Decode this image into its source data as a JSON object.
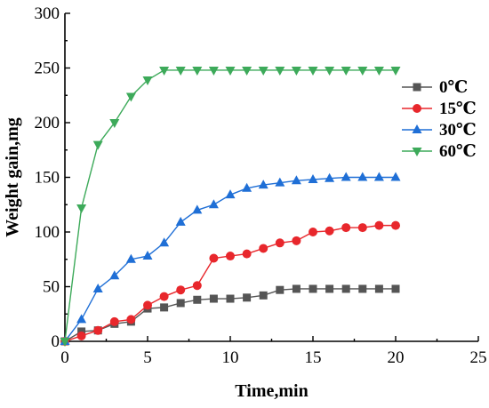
{
  "chart_data": {
    "type": "line",
    "title": "",
    "xlabel": "Time,min",
    "ylabel": "Weight gain,mg",
    "xlim": [
      0,
      25
    ],
    "ylim": [
      0,
      300
    ],
    "xticks": [
      0,
      5,
      10,
      15,
      20,
      25
    ],
    "yticks": [
      0,
      50,
      100,
      150,
      200,
      250,
      300
    ],
    "grid": false,
    "legend_position": "right",
    "series": [
      {
        "name": "0℃",
        "color": "#555555",
        "marker": "square",
        "x": [
          0,
          1,
          2,
          3,
          4,
          5,
          6,
          7,
          8,
          9,
          10,
          11,
          12,
          13,
          14,
          15,
          16,
          17,
          18,
          19,
          20
        ],
        "y": [
          0,
          9,
          10,
          16,
          18,
          30,
          31,
          35,
          38,
          39,
          39,
          40,
          42,
          47,
          48,
          48,
          48,
          48,
          48,
          48,
          48
        ]
      },
      {
        "name": "15℃",
        "color": "#e8272c",
        "marker": "circle",
        "x": [
          0,
          1,
          2,
          3,
          4,
          5,
          6,
          7,
          8,
          9,
          10,
          11,
          12,
          13,
          14,
          15,
          16,
          17,
          18,
          19,
          20
        ],
        "y": [
          0,
          5,
          10,
          18,
          20,
          33,
          41,
          47,
          51,
          76,
          78,
          80,
          85,
          90,
          92,
          100,
          101,
          104,
          104,
          106,
          106
        ]
      },
      {
        "name": "30℃",
        "color": "#1f6fd6",
        "marker": "triangle-up",
        "x": [
          0,
          1,
          2,
          3,
          4,
          5,
          6,
          7,
          8,
          9,
          10,
          11,
          12,
          13,
          14,
          15,
          16,
          17,
          18,
          19,
          20
        ],
        "y": [
          0,
          20,
          48,
          60,
          75,
          78,
          90,
          109,
          120,
          125,
          134,
          140,
          143,
          145,
          147,
          148,
          149,
          150,
          150,
          150,
          150
        ]
      },
      {
        "name": "60℃",
        "color": "#3daa5a",
        "marker": "triangle-down",
        "x": [
          0,
          1,
          2,
          3,
          4,
          5,
          6,
          7,
          8,
          9,
          10,
          11,
          12,
          13,
          14,
          15,
          16,
          17,
          18,
          19,
          20
        ],
        "y": [
          0,
          122,
          180,
          200,
          224,
          239,
          248,
          248,
          248,
          248,
          248,
          248,
          248,
          248,
          248,
          248,
          248,
          248,
          248,
          248,
          248
        ]
      }
    ]
  }
}
